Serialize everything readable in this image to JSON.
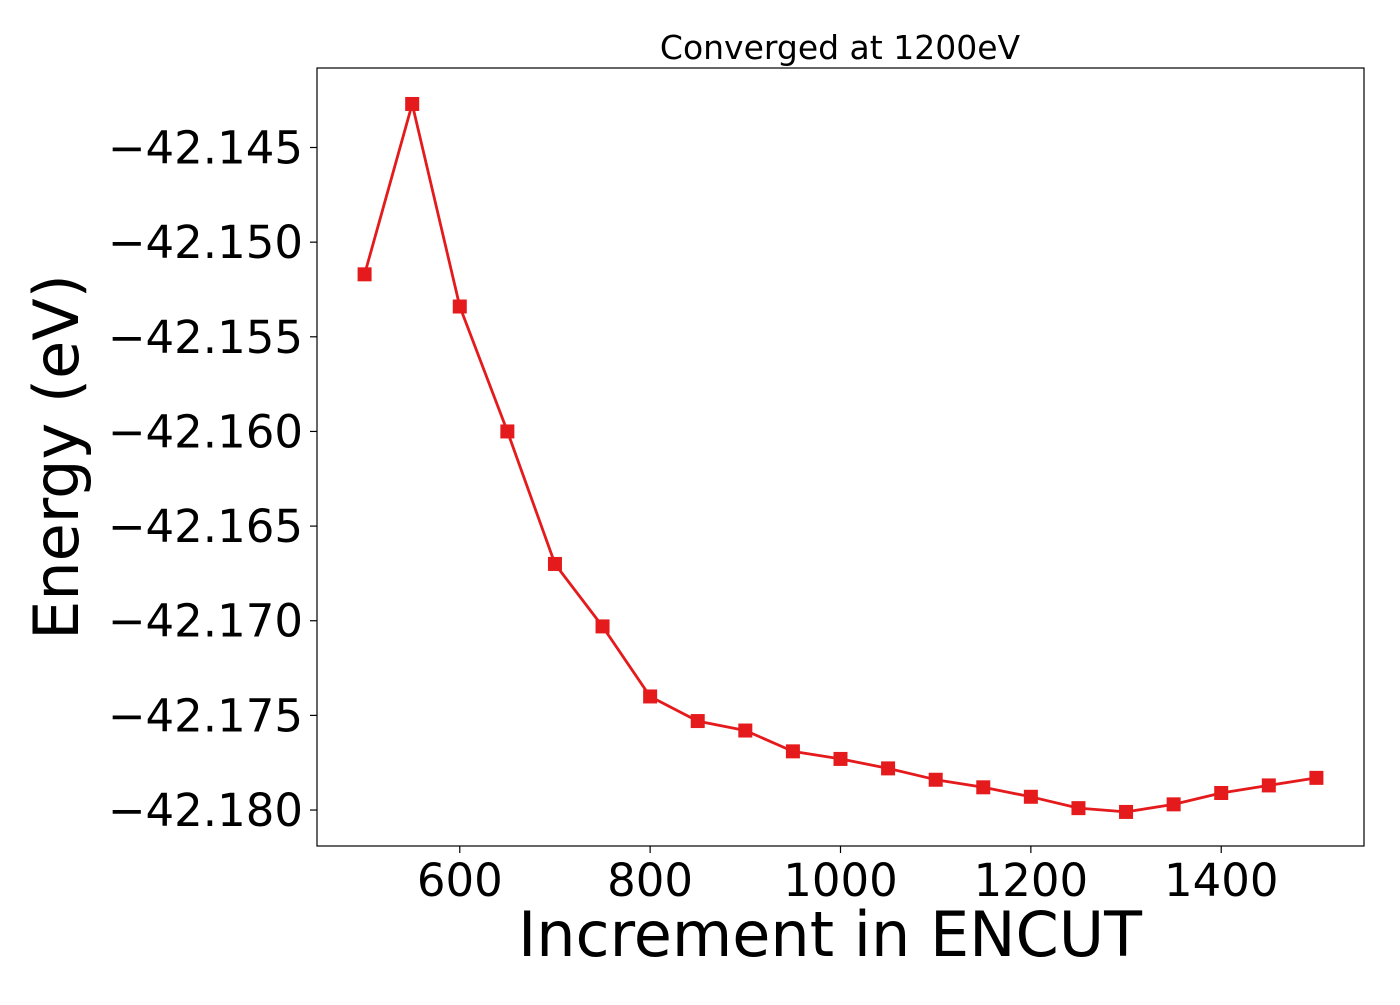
{
  "chart_data": {
    "type": "line",
    "title": "Converged at 1200eV",
    "xlabel": "Increment in ENCUT",
    "ylabel": "Energy (eV)",
    "x": [
      500,
      550,
      600,
      650,
      700,
      750,
      800,
      850,
      900,
      950,
      1000,
      1050,
      1100,
      1150,
      1200,
      1250,
      1300,
      1350,
      1400,
      1450,
      1500
    ],
    "series": [
      {
        "values": [
          -42.1517,
          -42.1427,
          -42.1534,
          -42.16,
          -42.167,
          -42.1703,
          -42.174,
          -42.1753,
          -42.1758,
          -42.1769,
          -42.1773,
          -42.1778,
          -42.1784,
          -42.1788,
          -42.1793,
          -42.1799,
          -42.1801,
          -42.1797,
          -42.1791,
          -42.1787,
          -42.1783
        ],
        "color": "#e41a1c",
        "marker": "square"
      }
    ],
    "xlim": [
      450,
      1550
    ],
    "ylim": [
      -42.1819,
      -42.1408
    ],
    "xticks": [
      600,
      800,
      1000,
      1200,
      1400
    ],
    "xtick_labels": [
      "600",
      "800",
      "1000",
      "1200",
      "1400"
    ],
    "yticks": [
      -42.145,
      -42.15,
      -42.155,
      -42.16,
      -42.165,
      -42.17,
      -42.175,
      -42.18
    ],
    "ytick_labels": [
      "−42.145",
      "−42.150",
      "−42.155",
      "−42.160",
      "−42.165",
      "−42.170",
      "−42.175",
      "−42.180"
    ],
    "grid": false,
    "legend": false
  }
}
